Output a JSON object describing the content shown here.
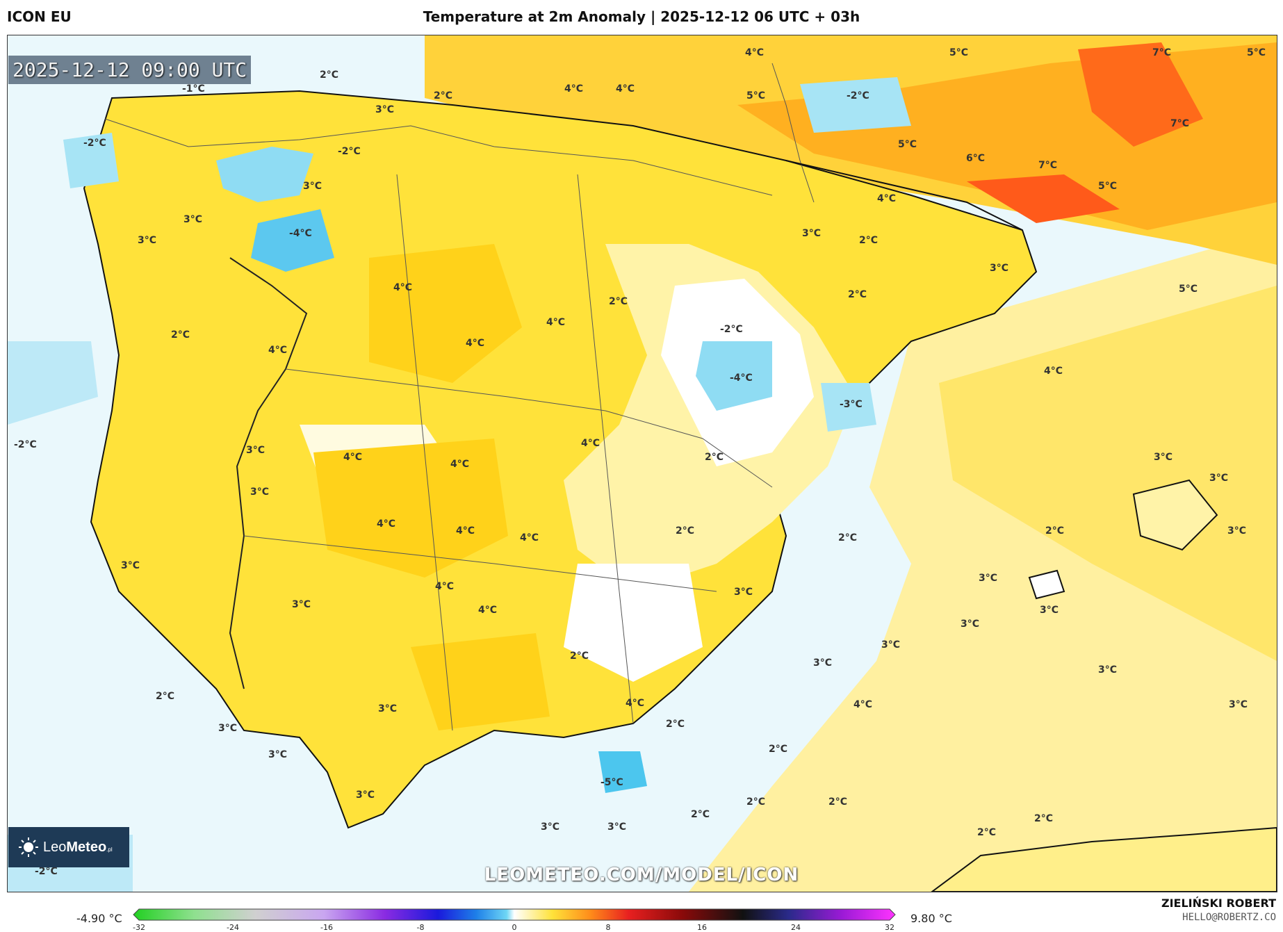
{
  "header": {
    "model": "ICON EU",
    "title": "Temperature at 2m Anomaly | 2025-12-12 06 UTC + 03h"
  },
  "valid_time": "2025-12-12 09:00 UTC",
  "labels": [
    {
      "text": "2°C"
    },
    {
      "text": "-1°C"
    },
    {
      "text": "3°C"
    },
    {
      "text": "2°C"
    },
    {
      "text": "4°C"
    },
    {
      "text": "4°C"
    },
    {
      "text": "4°C"
    },
    {
      "text": "5°C"
    },
    {
      "text": "5°C"
    },
    {
      "text": "-2°C"
    },
    {
      "text": "7°C"
    },
    {
      "text": "5°C"
    },
    {
      "text": "-2°C"
    },
    {
      "text": "-2°C"
    },
    {
      "text": "3°C"
    },
    {
      "text": "3°C"
    },
    {
      "text": "-4°C"
    },
    {
      "text": "3°C"
    },
    {
      "text": "5°C"
    },
    {
      "text": "6°C"
    },
    {
      "text": "7°C"
    },
    {
      "text": "5°C"
    },
    {
      "text": "7°C"
    },
    {
      "text": "4°C"
    },
    {
      "text": "3°C"
    },
    {
      "text": "2°C"
    },
    {
      "text": "3°C"
    },
    {
      "text": "4°C"
    },
    {
      "text": "2°C"
    },
    {
      "text": "2°C"
    },
    {
      "text": "4°C"
    },
    {
      "text": "2°C"
    },
    {
      "text": "-2°C"
    },
    {
      "text": "4°C"
    },
    {
      "text": "4°C"
    },
    {
      "text": "-4°C"
    },
    {
      "text": "-3°C"
    },
    {
      "text": "5°C"
    },
    {
      "text": "4°C"
    },
    {
      "text": "-2°C"
    },
    {
      "text": "3°C"
    },
    {
      "text": "4°C"
    },
    {
      "text": "4°C"
    },
    {
      "text": "4°C"
    },
    {
      "text": "2°C"
    },
    {
      "text": "3°C"
    },
    {
      "text": "3°C"
    },
    {
      "text": "3°C"
    },
    {
      "text": "4°C"
    },
    {
      "text": "4°C"
    },
    {
      "text": "4°C"
    },
    {
      "text": "2°C"
    },
    {
      "text": "2°C"
    },
    {
      "text": "2°C"
    },
    {
      "text": "3°C"
    },
    {
      "text": "3°C"
    },
    {
      "text": "4°C"
    },
    {
      "text": "3°C"
    },
    {
      "text": "3°C"
    },
    {
      "text": "4°C"
    },
    {
      "text": "3°C"
    },
    {
      "text": "3°C"
    },
    {
      "text": "3°C"
    },
    {
      "text": "3°C"
    },
    {
      "text": "2°C"
    },
    {
      "text": "3°C"
    },
    {
      "text": "3°C"
    },
    {
      "text": "3°C"
    },
    {
      "text": "4°C"
    },
    {
      "text": "2°C"
    },
    {
      "text": "3°C"
    },
    {
      "text": "2°C"
    },
    {
      "text": "4°C"
    },
    {
      "text": "3°C"
    },
    {
      "text": "3°C"
    },
    {
      "text": "-5°C"
    },
    {
      "text": "2°C"
    },
    {
      "text": "2°C"
    },
    {
      "text": "3°C"
    },
    {
      "text": "3°C"
    },
    {
      "text": "2°C"
    },
    {
      "text": "2°C"
    },
    {
      "text": "2°C"
    },
    {
      "text": "-2°C"
    },
    {
      "text": "3°C"
    },
    {
      "text": "2°C"
    }
  ],
  "watermark": "LEOMETEO.COM/MODEL/ICON",
  "brand": {
    "name_light": "Leo",
    "name_bold": "Meteo",
    "suffix": ".pl"
  },
  "legend": {
    "min_label": "-4.90 °C",
    "max_label": "9.80 °C",
    "ticks": [
      "-32",
      "-24",
      "-16",
      "-8",
      "0",
      "8",
      "16",
      "24",
      "32"
    ],
    "tick_values": [
      -32,
      -24,
      -16,
      -8,
      0,
      8,
      16,
      24,
      32
    ],
    "range": [
      -32,
      32
    ]
  },
  "author": "ZIELIŃSKI ROBERT",
  "contact": "HELLO@ROBERTZ.CO",
  "colors": {
    "sea": "#fff4b8",
    "land_warm": "#ffe23a",
    "land_mid": "#ffef8a",
    "land_cool": "#ffffff",
    "cold": "#a7e4f5",
    "cold_deep": "#4cc6ee",
    "hot": "#ff9a1a",
    "hotter": "#ff5a1a",
    "border": "#111111"
  }
}
